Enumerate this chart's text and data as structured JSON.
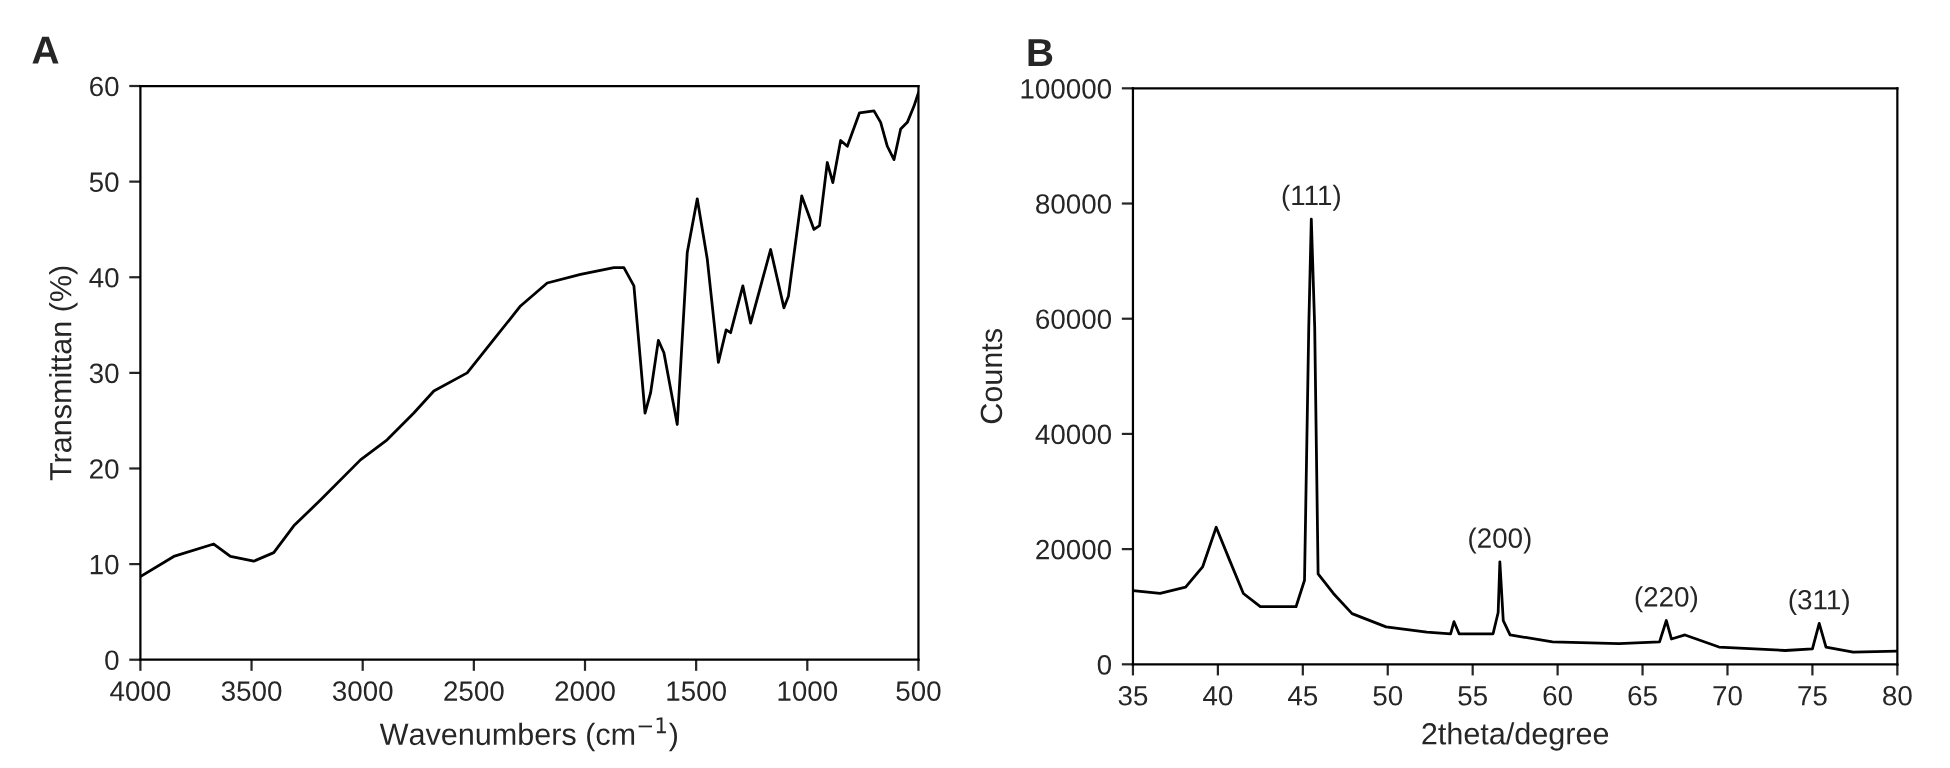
{
  "chart_data": [
    {
      "type": "line",
      "title": "A",
      "xlabel": "Wavenumbers (cm$^{−1}$)",
      "ylabel": "Transmittan (%)",
      "xlim": [
        4000,
        500
      ],
      "ylim": [
        0,
        60
      ],
      "xticks": [
        4000,
        3500,
        3000,
        2500,
        2000,
        1500,
        1000,
        500
      ],
      "yticks": [
        0,
        10,
        20,
        30,
        40,
        50,
        60
      ],
      "grid": false,
      "legend": false,
      "series": [
        {
          "color": "#000000",
          "x": [
            4000,
            3850,
            3670,
            3595,
            3490,
            3400,
            3310,
            3190,
            3010,
            2890,
            2770,
            2680,
            2530,
            2410,
            2290,
            2170,
            2020,
            1870,
            1825,
            1780,
            1730,
            1705,
            1670,
            1645,
            1585,
            1540,
            1495,
            1450,
            1400,
            1365,
            1345,
            1290,
            1255,
            1165,
            1105,
            1085,
            1025,
            970,
            945,
            910,
            885,
            850,
            820,
            765,
            700,
            670,
            640,
            610,
            580,
            550,
            520,
            500
          ],
          "values": [
            8.7,
            10.8,
            12.1,
            10.8,
            10.3,
            11.2,
            14.0,
            16.7,
            20.9,
            23.0,
            25.8,
            28.1,
            30.0,
            33.5,
            37.0,
            39.4,
            40.3,
            41.0,
            41.0,
            39.1,
            25.8,
            27.9,
            33.4,
            32.1,
            24.6,
            42.6,
            48.2,
            41.9,
            31.1,
            34.5,
            34.2,
            39.1,
            35.2,
            42.9,
            36.8,
            38.0,
            48.5,
            45.0,
            45.4,
            52.0,
            49.9,
            54.3,
            53.7,
            57.2,
            57.4,
            56.2,
            53.7,
            52.3,
            55.5,
            56.2,
            57.9,
            59.3
          ]
        }
      ]
    },
    {
      "type": "line",
      "title": "B",
      "xlabel": "2theta/degree",
      "ylabel": "Counts",
      "xlim": [
        35,
        80
      ],
      "ylim": [
        0,
        100000
      ],
      "xticks": [
        35,
        40,
        45,
        50,
        55,
        60,
        65,
        70,
        75,
        80
      ],
      "yticks": [
        0,
        20000,
        40000,
        60000,
        80000,
        100000
      ],
      "grid": false,
      "legend": false,
      "annotations": [
        {
          "text": "(111)",
          "x": 45.5,
          "y": 77300
        },
        {
          "text": "(200)",
          "x": 56.6,
          "y": 17800
        },
        {
          "text": "(220)",
          "x": 66.4,
          "y": 7600
        },
        {
          "text": "(311)",
          "x": 75.4,
          "y": 7100
        }
      ],
      "series": [
        {
          "color": "#000000",
          "x": [
            35.0,
            36.6,
            38.1,
            39.1,
            39.9,
            40.7,
            41.5,
            42.5,
            44.6,
            45.1,
            45.35,
            45.5,
            45.7,
            45.9,
            46.8,
            47.9,
            49.9,
            52.3,
            53.7,
            53.9,
            54.2,
            56.2,
            56.5,
            56.6,
            56.8,
            57.2,
            59.7,
            63.6,
            66.0,
            66.4,
            66.7,
            67.5,
            69.5,
            73.4,
            75.0,
            75.4,
            75.8,
            77.4,
            80.0
          ],
          "values": [
            12800,
            12300,
            13400,
            16900,
            23800,
            18000,
            12300,
            10000,
            10000,
            14600,
            58500,
            77300,
            58500,
            15700,
            12300,
            8800,
            6500,
            5600,
            5300,
            7400,
            5300,
            5300,
            9000,
            17800,
            7600,
            5100,
            3900,
            3600,
            3900,
            7600,
            4400,
            5100,
            3000,
            2400,
            2700,
            7100,
            3000,
            2100,
            2300
          ]
        }
      ]
    }
  ]
}
